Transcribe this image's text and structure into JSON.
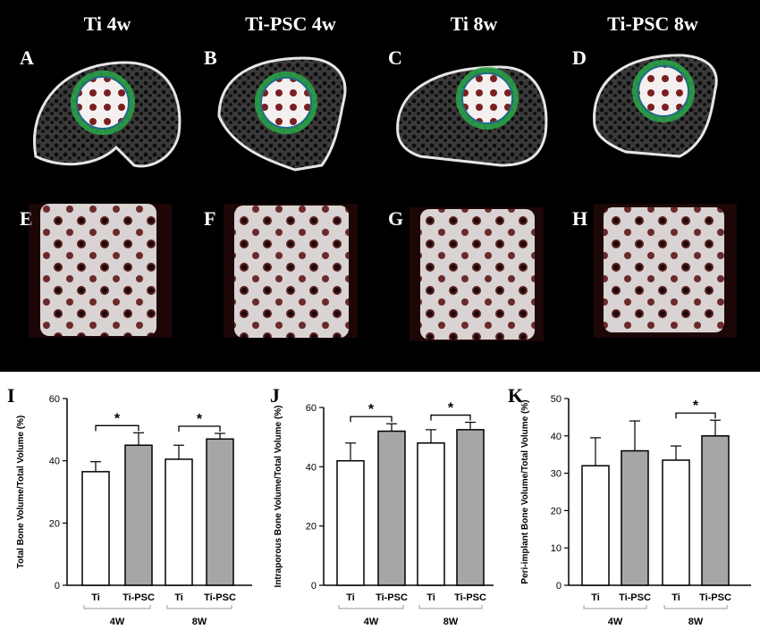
{
  "figure": {
    "column_titles": [
      "Ti 4w",
      "Ti-PSC 4w",
      "Ti 8w",
      "Ti-PSC 8w"
    ],
    "row1_letters": [
      "A",
      "B",
      "C",
      "D"
    ],
    "row2_letters": [
      "E",
      "F",
      "G",
      "H"
    ]
  },
  "chart_data": [
    {
      "type": "bar",
      "panel": "I",
      "ylabel": "Total Bone Volume/Total Volume (%)",
      "ylim": [
        0,
        60
      ],
      "yticks": [
        0,
        20,
        40,
        60
      ],
      "categories": [
        "Ti",
        "Ti-PSC",
        "Ti",
        "Ti-PSC"
      ],
      "groups": [
        "4W",
        "8W"
      ],
      "values": [
        36.5,
        45,
        40.5,
        47
      ],
      "errors": [
        3.2,
        4,
        4.5,
        1.8
      ],
      "significance": [
        {
          "pair": [
            0,
            1
          ],
          "label": "*"
        },
        {
          "pair": [
            2,
            3
          ],
          "label": "*"
        }
      ],
      "colors": [
        "#ffffff",
        "#a6a6a6"
      ]
    },
    {
      "type": "bar",
      "panel": "J",
      "ylabel": "Intraporous Bone Volume/Total Volume (%)",
      "ylim": [
        0,
        60
      ],
      "yticks": [
        0,
        20,
        40,
        60
      ],
      "categories": [
        "Ti",
        "Ti-PSC",
        "Ti",
        "Ti-PSC"
      ],
      "groups": [
        "4W",
        "8W"
      ],
      "values": [
        42,
        52,
        48,
        52.5
      ],
      "errors": [
        6,
        2.5,
        4.5,
        2.5
      ],
      "significance": [
        {
          "pair": [
            0,
            1
          ],
          "label": "*"
        },
        {
          "pair": [
            2,
            3
          ],
          "label": "*"
        }
      ],
      "colors": [
        "#ffffff",
        "#a6a6a6"
      ]
    },
    {
      "type": "bar",
      "panel": "K",
      "ylabel": "Peri-implant Bone Volume/Total Volume (%)",
      "ylim": [
        0,
        50
      ],
      "yticks": [
        0,
        10,
        20,
        30,
        40,
        50
      ],
      "categories": [
        "Ti",
        "Ti-PSC",
        "Ti",
        "Ti-PSC"
      ],
      "groups": [
        "4W",
        "8W"
      ],
      "values": [
        32,
        36,
        33.5,
        40
      ],
      "errors": [
        7.5,
        8,
        3.8,
        4.2
      ],
      "significance": [
        {
          "pair": [
            2,
            3
          ],
          "label": "*"
        }
      ],
      "colors": [
        "#ffffff",
        "#a6a6a6"
      ]
    }
  ]
}
